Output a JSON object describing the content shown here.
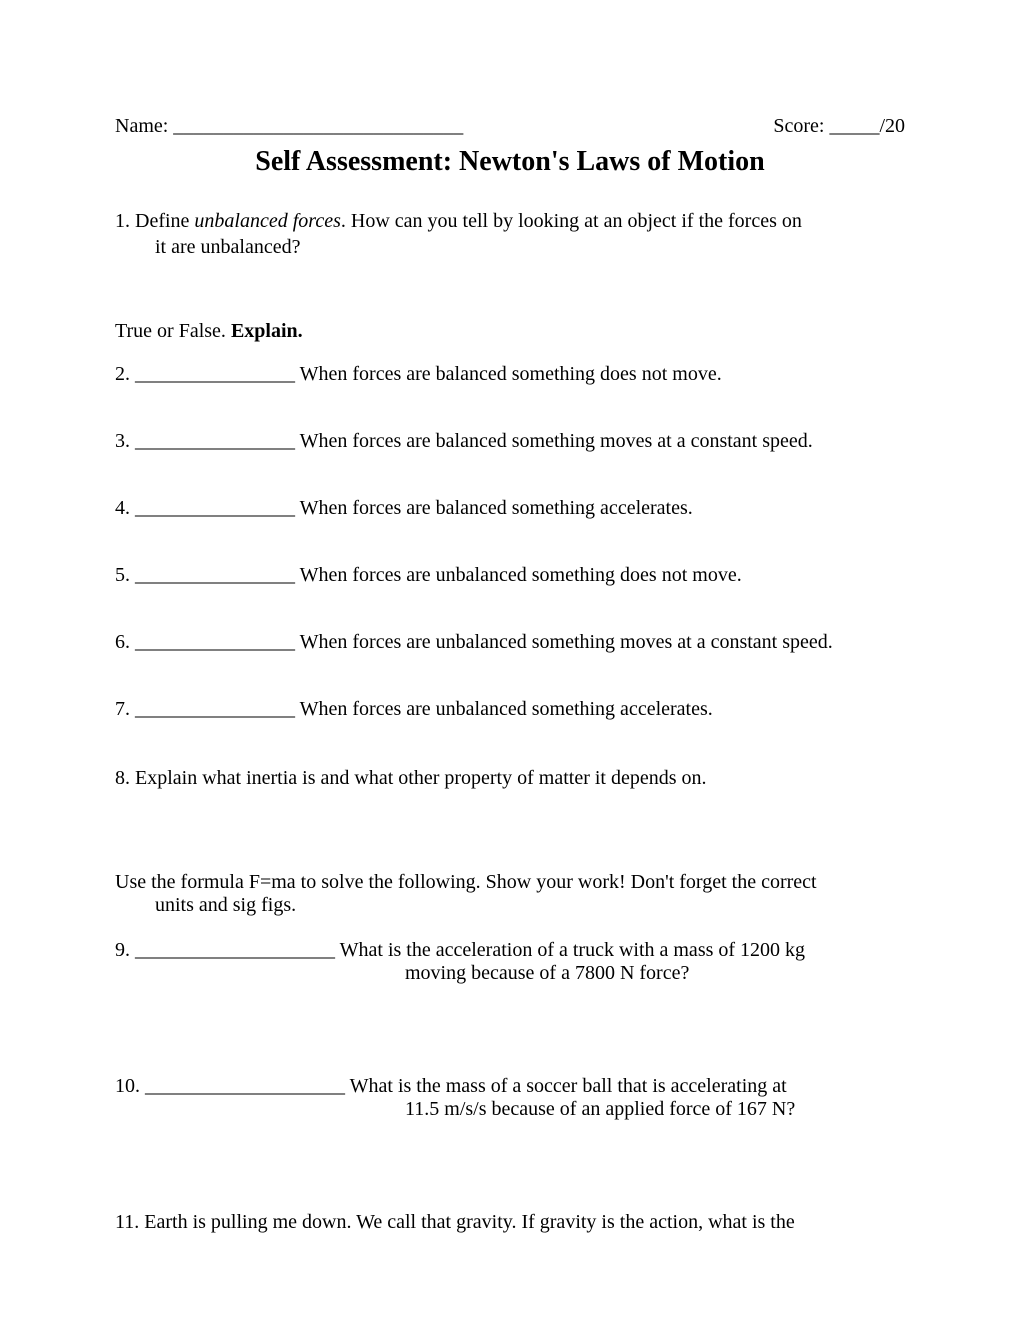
{
  "header": {
    "name_label": "Name: _____________________________",
    "score_label": "Score: _____/20"
  },
  "title": "Self Assessment: Newton's Laws of Motion",
  "q1": {
    "line1_prefix": "1. Define ",
    "line1_italic": "unbalanced forces",
    "line1_suffix": ". How can you tell by looking at an object if the forces on",
    "line2": "it are unbalanced?"
  },
  "tf_instruction": {
    "prefix": "True or False. ",
    "bold": "Explain."
  },
  "tf_items": [
    {
      "num": "2.",
      "blank": "________________",
      "text": "When forces are balanced something does not move."
    },
    {
      "num": "3.",
      "blank": "________________",
      "text": "When forces are balanced something moves at a constant speed."
    },
    {
      "num": "4.",
      "blank": "________________",
      "text": "When forces are balanced something accelerates."
    },
    {
      "num": "5.",
      "blank": "________________",
      "text": "When forces are unbalanced something does not move."
    },
    {
      "num": "6.",
      "blank": "________________",
      "text": "When forces are unbalanced something moves at a constant speed."
    },
    {
      "num": "7.",
      "blank": "________________",
      "text": "When forces are unbalanced something accelerates."
    }
  ],
  "q8": "8. Explain what inertia is and what other property of matter it depends on.",
  "formula_instruction": {
    "line1": "Use the formula F=ma to solve the following. Show your work! Don't forget the correct",
    "line2": "units and sig figs."
  },
  "calc_items": [
    {
      "num": "9.",
      "blank": "____________________",
      "line1": "What is the acceleration of a truck with a mass of 1200 kg",
      "line2": "moving because of a 7800 N force?"
    },
    {
      "num": "10.",
      "blank": "____________________",
      "line1": "What is the mass of a soccer ball that is accelerating at",
      "line2": "11.5 m/s/s because of an applied force of 167 N?"
    }
  ],
  "q11": "11. Earth is pulling me down. We call that gravity. If gravity is the action, what is the"
}
